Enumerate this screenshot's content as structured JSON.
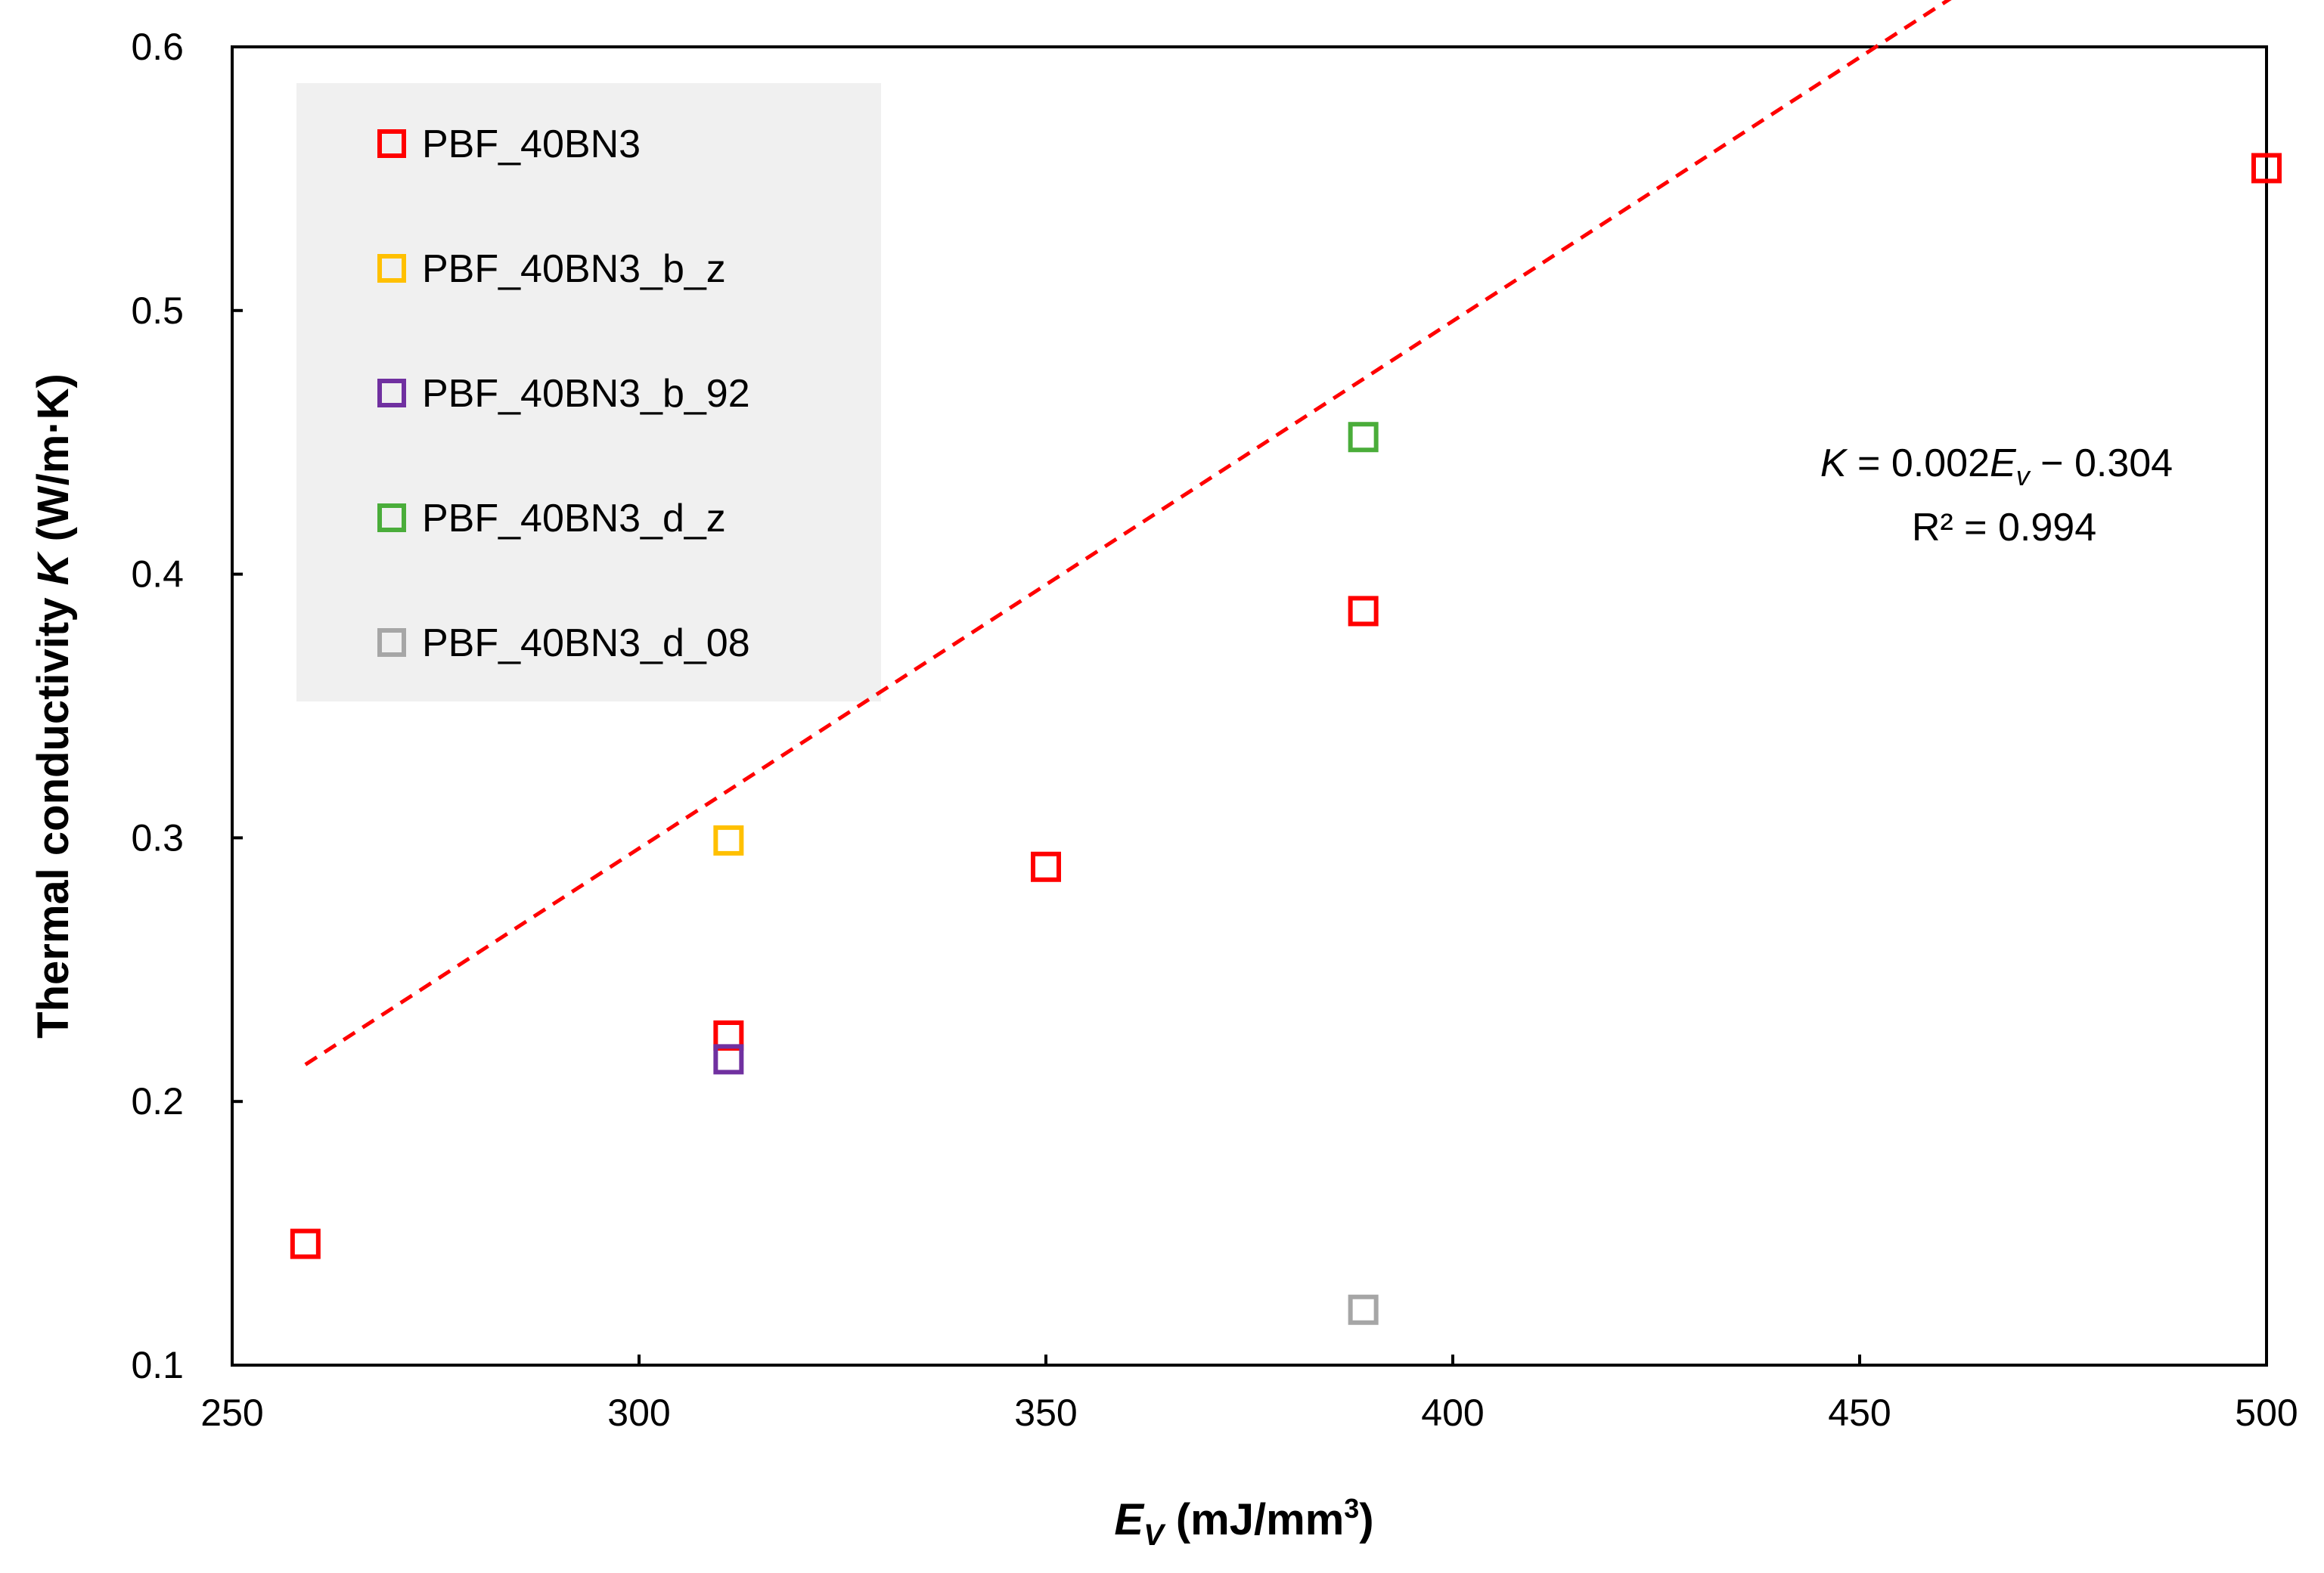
{
  "chart_data": {
    "type": "scatter",
    "title": "",
    "xlabel_main": "E",
    "xlabel_sub": "V",
    "xlabel_unit": " (mJ/mm",
    "xlabel_sup": "3",
    "xlabel_close": ")",
    "ylabel_main": "Thermal conductivity ",
    "ylabel_italic": "K",
    "ylabel_unit": " (W/m·K)",
    "xlim": [
      250,
      500
    ],
    "ylim": [
      0.1,
      0.6
    ],
    "x_ticks": [
      250,
      300,
      350,
      400,
      450,
      500
    ],
    "y_ticks": [
      0.1,
      0.2,
      0.3,
      0.4,
      0.5,
      0.6
    ],
    "x_tick_labels": [
      "250",
      "300",
      "350",
      "400",
      "450",
      "500"
    ],
    "y_tick_labels": [
      "0.1",
      "0.2",
      "0.3",
      "0.4",
      "0.5",
      "0.6"
    ],
    "grid": false,
    "legend_position": "top-left",
    "series": [
      {
        "name": "PBF_40BN3",
        "color": "#ff0000",
        "points": [
          [
            259,
            0.146
          ],
          [
            311,
            0.225
          ],
          [
            350,
            0.289
          ],
          [
            389,
            0.386
          ],
          [
            500,
            0.554
          ]
        ]
      },
      {
        "name": "PBF_40BN3_b_z",
        "color": "#ffc000",
        "points": [
          [
            311,
            0.299
          ]
        ]
      },
      {
        "name": "PBF_40BN3_b_92",
        "color": "#7030a0",
        "points": [
          [
            311,
            0.216
          ]
        ]
      },
      {
        "name": "PBF_40BN3_d_z",
        "color": "#4aad3a",
        "points": [
          [
            389,
            0.452
          ]
        ]
      },
      {
        "name": "PBF_40BN3_d_08",
        "color": "#a6a6a6",
        "points": [
          [
            389,
            0.121
          ]
        ]
      }
    ],
    "trendline": {
      "color": "#ff0000",
      "style": "dashed",
      "slope": 0.002,
      "intercept": -0.304,
      "x_range": [
        259,
        500
      ],
      "equation_k": "K",
      "equation_mid": " = 0.002",
      "equation_e": "E",
      "equation_sub": "v",
      "equation_tail": " − 0.304",
      "r_squared_label": "R² = 0.994"
    }
  }
}
